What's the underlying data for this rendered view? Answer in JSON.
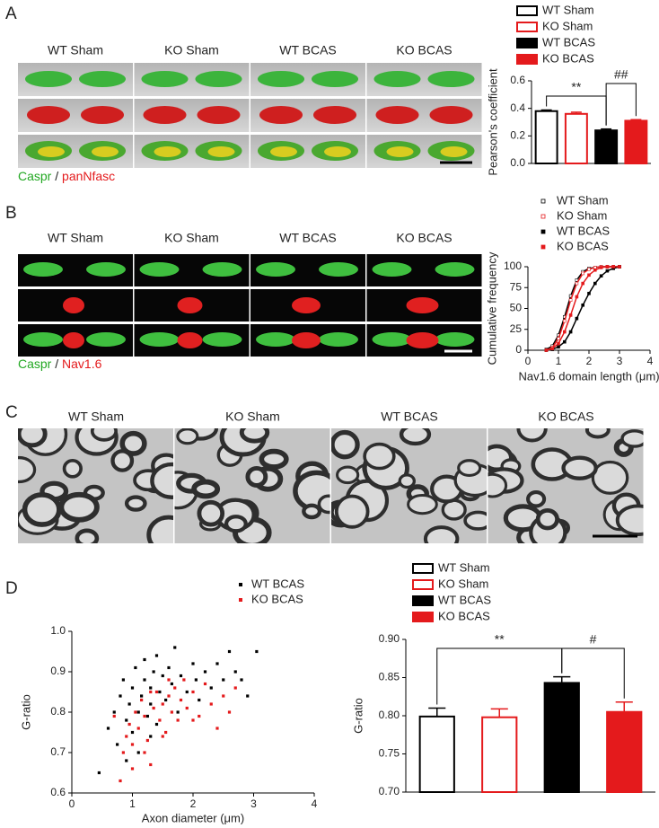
{
  "figure": {
    "panels": [
      {
        "label": "A",
        "columns": [
          "WT Sham",
          "KO Sham",
          "WT BCAS",
          "KO BCAS"
        ],
        "stain": {
          "green": "Caspr",
          "sep": "/",
          "red": "panNfasc"
        }
      },
      {
        "label": "B",
        "columns": [
          "WT Sham",
          "KO Sham",
          "WT BCAS",
          "KO BCAS"
        ],
        "stain": {
          "green": "Caspr",
          "sep": "/",
          "red": "Nav1.6"
        }
      },
      {
        "label": "C",
        "columns": [
          "WT Sham",
          "KO Sham",
          "WT BCAS",
          "KO BCAS"
        ]
      },
      {
        "label": "D"
      }
    ]
  },
  "chart_data": [
    {
      "type": "bar",
      "ylabel": "Pearson's coefficient",
      "ylim": [
        0,
        0.6
      ],
      "yticks": [
        {
          "value": 0,
          "label": "0.0"
        },
        0.2,
        0.4,
        0.6
      ],
      "series": [
        {
          "name": "WT Sham",
          "color": "#000000",
          "filled": false,
          "values": [
            0.38
          ],
          "errors": [
            0.008
          ]
        },
        {
          "name": "KO Sham",
          "color": "#e41a1c",
          "filled": false,
          "values": [
            0.36
          ],
          "errors": [
            0.012
          ]
        },
        {
          "name": "WT BCAS",
          "color": "#000000",
          "filled": true,
          "values": [
            0.24
          ],
          "errors": [
            0.01
          ]
        },
        {
          "name": "KO BCAS",
          "color": "#e41a1c",
          "filled": true,
          "values": [
            0.31
          ],
          "errors": [
            0.008
          ]
        }
      ],
      "annotations": [
        "**",
        "##"
      ]
    },
    {
      "type": "line",
      "xlabel": "Nav1.6 domain length (μm)",
      "ylabel": "Cumulative frequency",
      "x": [
        0.6,
        0.8,
        1.0,
        1.2,
        1.4,
        1.6,
        1.8,
        2.0,
        2.2,
        2.4,
        2.6,
        2.8,
        3.0
      ],
      "xlim": [
        0,
        4
      ],
      "xticks": [
        0,
        1,
        2,
        3,
        4
      ],
      "ylim": [
        0,
        100
      ],
      "yticks": [
        0,
        25,
        50,
        75,
        100
      ],
      "series": [
        {
          "name": "WT Sham",
          "color": "#000000",
          "filled": false,
          "values": [
            1,
            5,
            18,
            40,
            65,
            84,
            94,
            98,
            99,
            100,
            100,
            100,
            100
          ]
        },
        {
          "name": "KO Sham",
          "color": "#e41a1c",
          "filled": false,
          "values": [
            0,
            3,
            14,
            35,
            60,
            80,
            92,
            97,
            99,
            100,
            100,
            100,
            100
          ]
        },
        {
          "name": "WT BCAS",
          "color": "#000000",
          "filled": true,
          "values": [
            0,
            1,
            4,
            10,
            22,
            38,
            54,
            68,
            80,
            89,
            95,
            98,
            100
          ]
        },
        {
          "name": "KO BCAS",
          "color": "#e41a1c",
          "filled": true,
          "values": [
            0,
            2,
            8,
            22,
            42,
            64,
            80,
            90,
            96,
            99,
            100,
            100,
            100
          ]
        }
      ]
    },
    {
      "type": "scatter",
      "xlabel": "Axon diameter (μm)",
      "ylabel": "G-ratio",
      "xlim": [
        0,
        4
      ],
      "xticks": [
        0,
        1,
        2,
        3,
        4
      ],
      "ylim": [
        0.6,
        1.0
      ],
      "yticks": [
        0.6,
        0.7,
        0.8,
        0.9,
        {
          "value": 1.0,
          "label": "1.0"
        }
      ],
      "series": [
        {
          "name": "WT BCAS",
          "color": "#000000",
          "x": [
            0.45,
            0.6,
            0.7,
            0.75,
            0.8,
            0.85,
            0.9,
            0.95,
            1.0,
            1.0,
            1.05,
            1.1,
            1.1,
            1.15,
            1.2,
            1.2,
            1.25,
            1.3,
            1.3,
            1.35,
            1.4,
            1.4,
            1.45,
            1.5,
            1.55,
            1.6,
            1.65,
            1.7,
            1.75,
            1.8,
            1.9,
            2.0,
            2.05,
            2.1,
            2.2,
            2.3,
            2.4,
            2.5,
            2.6,
            2.7,
            2.8,
            2.9,
            3.05,
            0.9,
            1.3
          ],
          "values": [
            0.65,
            0.76,
            0.8,
            0.72,
            0.84,
            0.88,
            0.78,
            0.82,
            0.86,
            0.75,
            0.91,
            0.8,
            0.7,
            0.84,
            0.88,
            0.93,
            0.79,
            0.86,
            0.82,
            0.9,
            0.77,
            0.94,
            0.85,
            0.89,
            0.83,
            0.91,
            0.87,
            0.96,
            0.8,
            0.89,
            0.85,
            0.92,
            0.88,
            0.83,
            0.9,
            0.86,
            0.92,
            0.88,
            0.95,
            0.9,
            0.88,
            0.84,
            0.95,
            0.68,
            0.74
          ]
        },
        {
          "name": "KO BCAS",
          "color": "#e41a1c",
          "x": [
            0.8,
            0.85,
            0.9,
            0.95,
            1.0,
            1.05,
            1.1,
            1.15,
            1.2,
            1.25,
            1.3,
            1.35,
            1.4,
            1.45,
            1.5,
            1.55,
            1.6,
            1.65,
            1.7,
            1.75,
            1.8,
            1.85,
            1.9,
            2.0,
            2.1,
            2.2,
            2.3,
            2.4,
            2.5,
            2.6,
            2.7,
            1.0,
            1.2,
            0.7,
            1.6,
            2.0,
            1.3,
            1.5
          ],
          "values": [
            0.63,
            0.7,
            0.74,
            0.77,
            0.72,
            0.8,
            0.76,
            0.83,
            0.79,
            0.73,
            0.67,
            0.81,
            0.85,
            0.78,
            0.82,
            0.75,
            0.84,
            0.8,
            0.86,
            0.78,
            0.83,
            0.88,
            0.81,
            0.85,
            0.79,
            0.87,
            0.82,
            0.76,
            0.84,
            0.8,
            0.86,
            0.66,
            0.7,
            0.79,
            0.88,
            0.78,
            0.85,
            0.74
          ]
        }
      ]
    },
    {
      "type": "bar",
      "ylabel": "G-ratio",
      "ylim": [
        0.7,
        0.9
      ],
      "yticks": [
        {
          "value": 0.7,
          "label": "0.70"
        },
        0.75,
        {
          "value": 0.8,
          "label": "0.80"
        },
        0.85,
        {
          "value": 0.9,
          "label": "0.90"
        }
      ],
      "series": [
        {
          "name": "WT Sham",
          "color": "#000000",
          "filled": false,
          "values": [
            0.799
          ],
          "errors": [
            0.011
          ]
        },
        {
          "name": "KO Sham",
          "color": "#e41a1c",
          "filled": false,
          "values": [
            0.798
          ],
          "errors": [
            0.011
          ]
        },
        {
          "name": "WT BCAS",
          "color": "#000000",
          "filled": true,
          "values": [
            0.843
          ],
          "errors": [
            0.008
          ]
        },
        {
          "name": "KO BCAS",
          "color": "#e41a1c",
          "filled": true,
          "values": [
            0.805
          ],
          "errors": [
            0.013
          ]
        }
      ],
      "annotations": [
        "**",
        "#"
      ]
    }
  ]
}
